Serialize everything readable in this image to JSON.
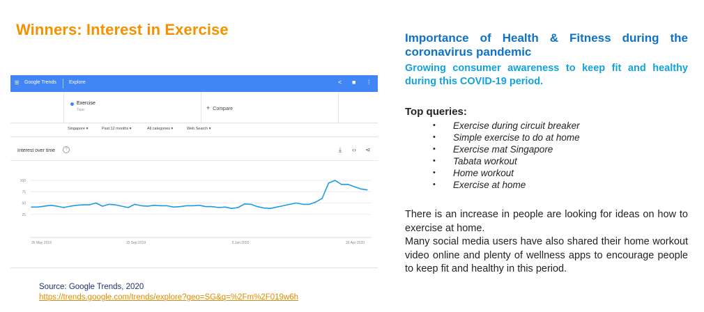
{
  "slide": {
    "title": "Winners: Interest in Exercise",
    "source_label": "Source: Google Trends, 2020",
    "source_url": "https://trends.google.com/trends/explore?geo=SG&q=%2Fm%2F019w6h"
  },
  "trends": {
    "brand": "Google Trends",
    "nav_tab": "Explore",
    "search_term": "Exercise",
    "search_term_type": "Topic",
    "compare_label": "Compare",
    "filters": [
      "Singapore",
      "Past 12 months",
      "All categories",
      "Web Search"
    ],
    "card_title": "Interest over time",
    "icons": [
      "menu-icon",
      "share-icon",
      "feedback-icon",
      "apps-icon",
      "help-icon",
      "download-icon",
      "embed-icon",
      "share-icon"
    ],
    "accent_color": "#4285f4",
    "line_color": "#1a9be6"
  },
  "chart_data": {
    "type": "line",
    "title": "Interest over time",
    "xlabel": "",
    "ylabel": "",
    "ylim": [
      0,
      100
    ],
    "yticks": [
      "100",
      "75",
      "50",
      "25"
    ],
    "xtick_labels": [
      "26 May 2019",
      "15 Sep 2019",
      "5 Jan 2020",
      "26 Apr 2020"
    ],
    "grid": true,
    "series": [
      {
        "values": [
          41,
          41,
          43,
          45,
          43,
          40,
          43,
          45,
          46,
          46,
          50,
          43,
          47,
          46,
          43,
          40,
          47,
          44,
          43,
          45,
          44,
          44,
          41,
          42,
          44,
          44,
          45,
          42,
          42,
          40,
          41,
          38,
          40,
          48,
          47,
          42,
          39,
          38,
          41,
          44,
          47,
          50,
          47,
          47,
          52,
          60,
          94,
          100,
          91,
          91,
          86,
          81,
          79
        ]
      }
    ]
  },
  "right": {
    "heading": "Importance of Health & Fitness during the coronavirus pandemic",
    "subheading": "Growing consumer awareness to keep fit and healthy during this COVID-19 period.",
    "top_queries_label": "Top queries:",
    "bullet_glyph": "•",
    "queries": [
      "Exercise during circuit breaker",
      "Simple exercise to do at home",
      "Exercise mat Singapore",
      "Tabata workout",
      "Home workout",
      "Exercise at home"
    ],
    "paragraph1": "There is an increase in people are looking for ideas on how to exercise at home.",
    "paragraph2": "Many social media users have also shared their home workout video online and plenty of wellness apps to encourage people to keep fit and healthy in this period."
  }
}
